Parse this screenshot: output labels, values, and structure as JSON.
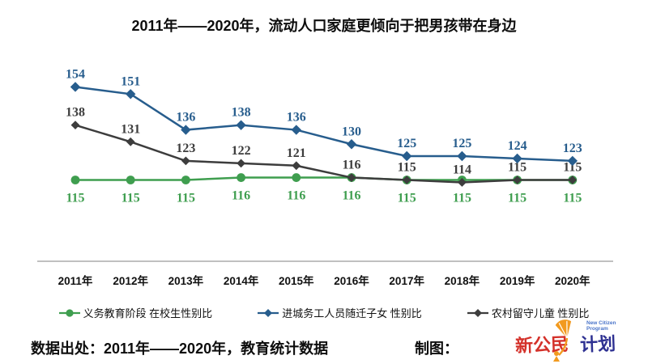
{
  "chart_data": {
    "type": "line",
    "title": "2011年——2020年，流动人口家庭更倾向于把男孩带在身边",
    "categories": [
      "2011年",
      "2012年",
      "2013年",
      "2014年",
      "2015年",
      "2016年",
      "2017年",
      "2018年",
      "2019年",
      "2020年"
    ],
    "series": [
      {
        "name": "义务教育阶段 在校生性别比",
        "color": "#3F9E4F",
        "marker": "circle",
        "marker_size": 5.4,
        "label_position": "below",
        "values": [
          115,
          115,
          115,
          116,
          116,
          116,
          115,
          115,
          115,
          115
        ]
      },
      {
        "name": "进城务工人员随迁子女 性别比",
        "color": "#275D8D",
        "marker": "diamond",
        "marker_size": 6.2,
        "label_position": "above",
        "values": [
          154,
          151,
          136,
          138,
          136,
          130,
          125,
          125,
          124,
          123
        ]
      },
      {
        "name": "农村留守儿童 性别比",
        "color": "#3D3D3D",
        "marker": "diamond",
        "marker_size": 5.4,
        "label_position": "above",
        "values": [
          138,
          131,
          123,
          122,
          121,
          116,
          115,
          114,
          115,
          115
        ]
      }
    ],
    "ylim": [
      110,
      160
    ],
    "grid": false,
    "data_labels": true,
    "legend_position": "bottom",
    "axis_line_color": "#9B9B9B",
    "text_color": "#111111"
  },
  "footer": {
    "source_text": "数据出处：2011年——2020年，教育统计数据",
    "credit_label": "制图：",
    "logo": {
      "text_red": "新公民",
      "text_blue": "计划",
      "text_en": "New Citizen Program",
      "red": "#D4312A",
      "blue": "#2E3192",
      "orange": "#F29A1F"
    }
  }
}
